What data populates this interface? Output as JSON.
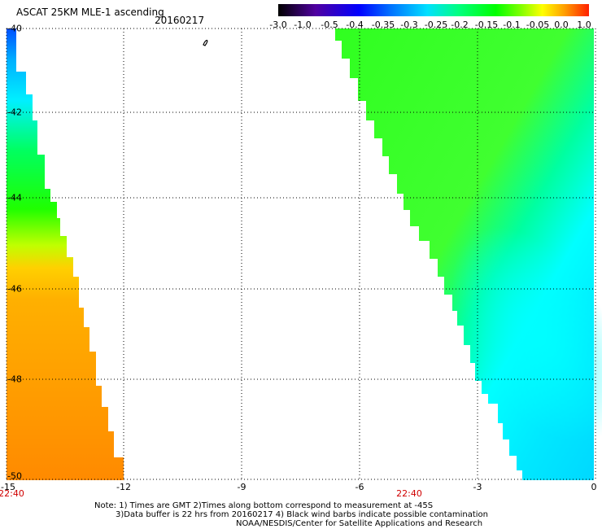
{
  "header": {
    "title": "ASCAT 25KM MLE-1 ascending",
    "date": "20160217"
  },
  "colorbar": {
    "labels": [
      "-3.0",
      "-1.0",
      "-0.5",
      "-0.4",
      "-0.35",
      "-0.3",
      "-0.25",
      "-0.2",
      "-0.15",
      "-0.1",
      "-0.05",
      "0.0",
      "1.0"
    ],
    "colors": [
      "#000000",
      "#5000a0",
      "#0000ff",
      "#0070ff",
      "#00e0ff",
      "#00ff80",
      "#00ff00",
      "#80ff00",
      "#ffff00",
      "#ffa000",
      "#ff4000",
      "#ff0000"
    ]
  },
  "axes": {
    "y_labels": [
      "-40",
      "-42",
      "-44",
      "-46",
      "-48",
      "-50"
    ],
    "x_labels": [
      "-15",
      "-12",
      "-9",
      "-6",
      "-3",
      "0"
    ],
    "times": [
      "22:40",
      "22:40"
    ]
  },
  "notes": {
    "line1": "Note: 1) Times are GMT 2)Times along bottom correspond to measurement at -45S",
    "line2": "3)Data buffer is 22 hrs from 20160217 4) Black wind barbs indicate possible contamination",
    "line3": "NOAA/NESDIS/Center for Satellite Applications and Research"
  },
  "colors": {
    "grid": "#000000",
    "time_label": "#d00000"
  }
}
